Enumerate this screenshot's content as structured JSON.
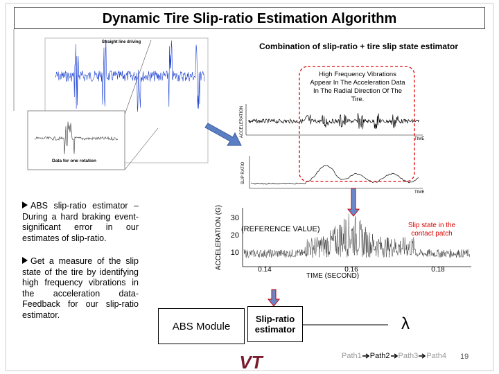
{
  "header": {
    "title": "Dynamic Tire Slip-ratio Estimation Algorithm",
    "subtitle": "Combination of slip-ratio + tire slip state estimator"
  },
  "figures": {
    "top_left": {
      "title": "Straight line driving",
      "inset_caption": "Data for one rotation"
    },
    "top_right": {
      "callout": "High Frequency Vibrations Appear In The Acceleration Data In The Radial Direction Of The Tire.",
      "y_label_top": "ACCELERATION",
      "x_label_top": "TIME",
      "y_label_bottom": "SLIP RATIO",
      "x_label_bottom": "TIME"
    },
    "middle": {
      "y_label": "ACCELERATION (G)",
      "x_label": "TIME (SECOND)",
      "reference": "(REFERENCE VALUE)",
      "yticks": [
        "30",
        "20",
        "10"
      ],
      "xticks": [
        "0.14",
        "0.16",
        "0.18"
      ],
      "note": "Slip state in the contact patch"
    }
  },
  "bullets": [
    "ABS slip-ratio estimator – During a hard braking event- significant error in our estimates of slip-ratio.",
    "Get a measure of the slip state of the tire by identifying high frequency vibrations in the acceleration data-Feedback for our slip-ratio estimator."
  ],
  "diagram": {
    "abs_module": "ABS Module",
    "estimator": "Slip-ratio estimator",
    "symbol": "λ"
  },
  "footer": {
    "paths": [
      "Path1",
      "Path2",
      "Path3",
      "Path4"
    ],
    "page": "19",
    "logo": "VT"
  }
}
